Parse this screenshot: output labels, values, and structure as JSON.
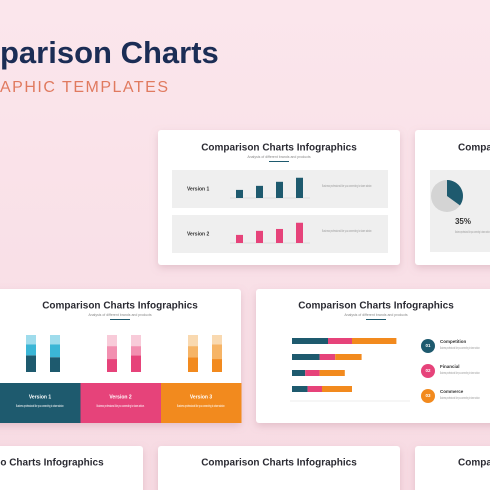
{
  "header": {
    "title": "parison Charts",
    "subtitle": "APHIC TEMPLATES"
  },
  "slides": [
    {
      "title": "Comparison Charts Infographics",
      "subtitle": "Analysis of different brands and products",
      "panels": [
        {
          "label": "Version 1",
          "color": "#1e5a6e",
          "values": [
            30,
            45,
            60,
            75
          ],
          "text": "Business professional like you connecting to share advice."
        },
        {
          "label": "Version 2",
          "color": "#e6437a",
          "values": [
            30,
            45,
            52,
            75
          ],
          "text": "Business professional like you connecting to share advice."
        }
      ]
    },
    {
      "title": "Compa",
      "value": 35,
      "value_label": "35%",
      "text": "Business professional like you connecting to share advice."
    },
    {
      "title": "Comparison Charts Infographics",
      "subtitle": "Analysis of different brands and products",
      "groups": [
        {
          "label": "Version 1",
          "text": "Business professional like you connecting to share advice.",
          "colors": [
            "#1e5a6e",
            "#3bb6d6",
            "#9fdcec"
          ],
          "bars": [
            [
              45,
              30,
              25
            ],
            [
              40,
              35,
              25
            ]
          ]
        },
        {
          "label": "Version 2",
          "text": "Business professional like you connecting to share advice.",
          "colors": [
            "#e6437a",
            "#f28fb0",
            "#f8cbd9"
          ],
          "bars": [
            [
              35,
              35,
              30
            ],
            [
              45,
              25,
              30
            ]
          ]
        },
        {
          "label": "Version 3",
          "text": "Business professional like you connecting to share advice.",
          "colors": [
            "#f28a1e",
            "#f6b466",
            "#f9d9b0"
          ],
          "bars": [
            [
              40,
              30,
              30
            ],
            [
              35,
              40,
              25
            ]
          ]
        }
      ]
    },
    {
      "title": "Comparison Charts Infographics",
      "subtitle": "Analysis of different brands and products",
      "colors": [
        "#1e5a6e",
        "#e6437a",
        "#f28a1e"
      ],
      "rows": [
        [
          30,
          20,
          37
        ],
        [
          23,
          13,
          22
        ],
        [
          11,
          12,
          21
        ],
        [
          13,
          12,
          25
        ]
      ],
      "legend": [
        {
          "number": "01",
          "label": "Competition",
          "text": "Business professional like you connecting to share advice."
        },
        {
          "number": "02",
          "label": "Financial",
          "text": "Business professional like you connecting to share advice."
        },
        {
          "number": "03",
          "label": "Commerce",
          "text": "Business professional like you connecting to share advice."
        }
      ]
    },
    {
      "title": "o Charts Infographics"
    },
    {
      "title": "Comparison Charts Infographics"
    },
    {
      "title": "Compa"
    }
  ]
}
